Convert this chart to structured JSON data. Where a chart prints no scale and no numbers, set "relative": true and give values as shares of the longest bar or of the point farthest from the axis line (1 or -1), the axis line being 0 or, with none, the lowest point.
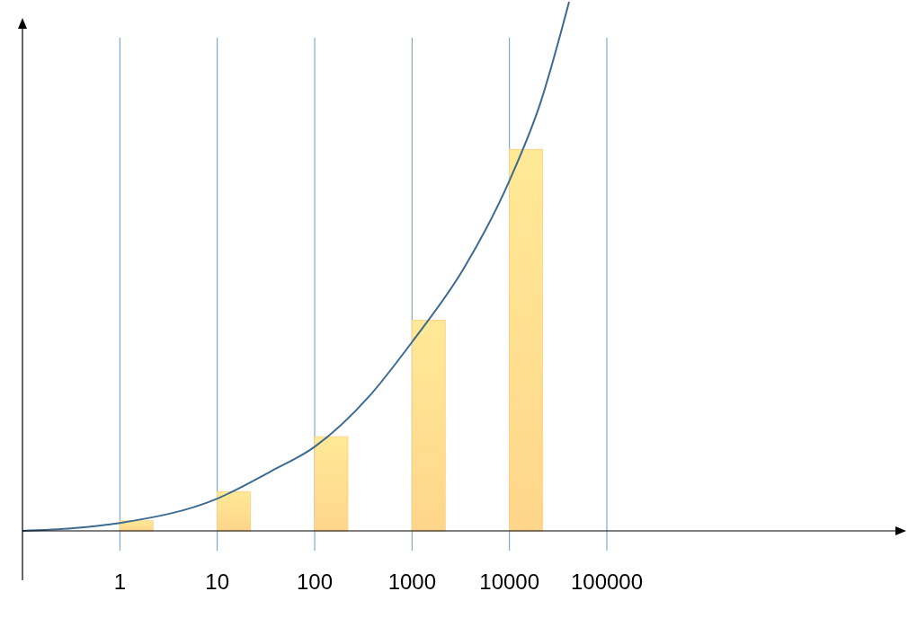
{
  "chart_data": {
    "type": "bar",
    "relative": true,
    "log": "x",
    "xlim": [
      0.1,
      100000000
    ],
    "xticks": [
      1,
      10,
      100,
      1000,
      10000,
      100000
    ],
    "grid": "x",
    "series": [
      {
        "color": "#fed58a",
        "x": [
          1.48,
          14.8,
          148,
          1480,
          14800
        ],
        "values": [
          0.019,
          0.074,
          0.178,
          0.398,
          0.721
        ]
      },
      {
        "type": "line",
        "color": "#3d6a91",
        "x": [
          0.1,
          0.33,
          1,
          10,
          35,
          100,
          365,
          1000,
          3400,
          10000,
          20900,
          41000
        ],
        "values": [
          0,
          0.005,
          0.015,
          0.061,
          0.112,
          0.159,
          0.255,
          0.357,
          0.496,
          0.662,
          0.81,
          1
        ]
      }
    ]
  }
}
